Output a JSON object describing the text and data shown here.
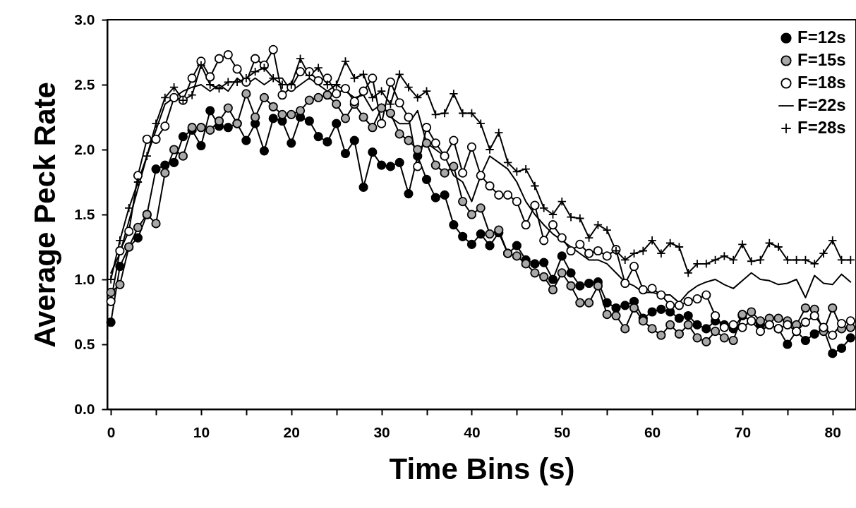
{
  "chart_data": {
    "type": "line",
    "xlabel": "Time Bins (s)",
    "ylabel": "Average Peck Rate",
    "x": [
      0,
      1,
      2,
      3,
      4,
      5,
      6,
      7,
      8,
      9,
      10,
      11,
      12,
      13,
      14,
      15,
      16,
      17,
      18,
      19,
      20,
      21,
      22,
      23,
      24,
      25,
      26,
      27,
      28,
      29,
      30,
      31,
      32,
      33,
      34,
      35,
      36,
      37,
      38,
      39,
      40,
      41,
      42,
      43,
      44,
      45,
      46,
      47,
      48,
      49,
      50,
      51,
      52,
      53,
      54,
      55,
      56,
      57,
      58,
      59,
      60,
      61,
      62,
      63,
      64,
      65,
      66,
      67,
      68,
      69,
      70,
      71,
      72,
      73,
      74,
      75,
      76,
      77,
      78,
      79,
      80,
      81,
      82
    ],
    "series": [
      {
        "name": "F=12s",
        "color": "#000000",
        "marker": "circle",
        "values": [
          0.67,
          1.1,
          1.25,
          1.32,
          1.5,
          1.85,
          1.88,
          1.9,
          2.1,
          2.15,
          2.03,
          2.3,
          2.18,
          2.17,
          2.2,
          2.07,
          2.2,
          1.99,
          2.24,
          2.22,
          2.05,
          2.25,
          2.22,
          2.1,
          2.06,
          2.2,
          1.97,
          2.07,
          1.71,
          1.98,
          1.88,
          1.87,
          1.9,
          1.66,
          1.95,
          1.77,
          1.63,
          1.65,
          1.42,
          1.33,
          1.27,
          1.35,
          1.26,
          1.36,
          1.2,
          1.26,
          1.15,
          1.12,
          1.13,
          1.0,
          1.18,
          1.05,
          0.95,
          0.97,
          0.98,
          0.82,
          0.78,
          0.8,
          0.83,
          0.7,
          0.75,
          0.77,
          0.75,
          0.7,
          0.72,
          0.65,
          0.62,
          0.68,
          0.65,
          0.62,
          0.72,
          0.68,
          0.65,
          0.65,
          0.62,
          0.5,
          0.6,
          0.53,
          0.58,
          0.62,
          0.43,
          0.47,
          0.55
        ]
      },
      {
        "name": "F=15s",
        "color": "#a8a8a8",
        "marker": "circle",
        "values": [
          0.9,
          0.96,
          1.25,
          1.4,
          1.5,
          1.43,
          1.82,
          2.0,
          1.95,
          2.17,
          2.17,
          2.15,
          2.22,
          2.32,
          2.2,
          2.43,
          2.25,
          2.4,
          2.33,
          2.27,
          2.27,
          2.3,
          2.38,
          2.4,
          2.42,
          2.35,
          2.24,
          2.35,
          2.25,
          2.17,
          2.32,
          2.28,
          2.12,
          2.07,
          2.0,
          2.05,
          1.88,
          1.82,
          1.87,
          1.6,
          1.5,
          1.55,
          1.35,
          1.38,
          1.2,
          1.18,
          1.12,
          1.05,
          1.02,
          0.92,
          1.05,
          0.95,
          0.82,
          0.82,
          0.95,
          0.73,
          0.72,
          0.62,
          0.78,
          0.68,
          0.62,
          0.57,
          0.65,
          0.58,
          0.65,
          0.55,
          0.52,
          0.6,
          0.55,
          0.53,
          0.73,
          0.75,
          0.68,
          0.7,
          0.7,
          0.68,
          0.65,
          0.78,
          0.77,
          0.6,
          0.78,
          0.62,
          0.63
        ]
      },
      {
        "name": "F=18s",
        "color": "#ffffff",
        "marker": "circle",
        "values": [
          0.83,
          1.22,
          1.37,
          1.8,
          2.08,
          2.08,
          2.18,
          2.4,
          2.38,
          2.55,
          2.68,
          2.56,
          2.7,
          2.73,
          2.62,
          2.52,
          2.7,
          2.65,
          2.77,
          2.42,
          2.48,
          2.6,
          2.6,
          2.53,
          2.55,
          2.43,
          2.47,
          2.37,
          2.45,
          2.55,
          2.2,
          2.52,
          2.36,
          2.25,
          1.87,
          2.17,
          2.05,
          1.95,
          2.07,
          1.82,
          2.02,
          1.8,
          1.72,
          1.65,
          1.65,
          1.6,
          1.42,
          1.57,
          1.3,
          1.42,
          1.32,
          1.22,
          1.27,
          1.2,
          1.22,
          1.18,
          1.23,
          0.97,
          1.1,
          0.92,
          0.93,
          0.88,
          0.8,
          0.8,
          0.83,
          0.85,
          0.88,
          0.72,
          0.63,
          0.65,
          0.63,
          0.68,
          0.6,
          0.65,
          0.62,
          0.65,
          0.6,
          0.67,
          0.72,
          0.63,
          0.57,
          0.66,
          0.68
        ]
      },
      {
        "name": "F=22s",
        "color": "#000000",
        "marker": "none",
        "values": [
          1.05,
          1.2,
          1.45,
          1.7,
          1.95,
          2.15,
          2.35,
          2.4,
          2.45,
          2.48,
          2.5,
          2.45,
          2.5,
          2.45,
          2.55,
          2.5,
          2.55,
          2.5,
          2.55,
          2.55,
          2.45,
          2.5,
          2.55,
          2.5,
          2.45,
          2.5,
          2.45,
          2.4,
          2.42,
          2.3,
          2.35,
          2.25,
          2.2,
          2.2,
          2.3,
          2.05,
          2.0,
          1.95,
          1.8,
          1.75,
          1.6,
          1.8,
          1.95,
          1.9,
          1.85,
          1.75,
          1.6,
          1.5,
          1.42,
          1.35,
          1.3,
          1.25,
          1.2,
          1.15,
          1.15,
          1.12,
          1.05,
          0.98,
          0.95,
          0.9,
          0.9,
          0.88,
          0.88,
          0.82,
          0.9,
          0.95,
          0.98,
          1.0,
          0.96,
          0.93,
          0.99,
          1.05,
          1.0,
          0.99,
          0.96,
          0.97,
          1.0,
          0.86,
          1.03,
          0.97,
          0.96,
          1.04,
          0.98
        ]
      },
      {
        "name": "F=28s",
        "color": "#000000",
        "marker": "cross",
        "values": [
          1.0,
          1.3,
          1.55,
          1.75,
          1.95,
          2.2,
          2.4,
          2.48,
          2.38,
          2.42,
          2.65,
          2.5,
          2.47,
          2.52,
          2.52,
          2.55,
          2.6,
          2.63,
          2.55,
          2.5,
          2.5,
          2.7,
          2.57,
          2.63,
          2.5,
          2.5,
          2.68,
          2.55,
          2.58,
          2.4,
          2.45,
          2.35,
          2.58,
          2.48,
          2.4,
          2.45,
          2.27,
          2.28,
          2.43,
          2.28,
          2.28,
          2.2,
          2.0,
          2.13,
          1.9,
          1.83,
          1.85,
          1.72,
          1.55,
          1.5,
          1.6,
          1.48,
          1.47,
          1.32,
          1.42,
          1.38,
          1.22,
          1.15,
          1.2,
          1.22,
          1.3,
          1.2,
          1.28,
          1.25,
          1.05,
          1.12,
          1.12,
          1.15,
          1.18,
          1.15,
          1.27,
          1.14,
          1.15,
          1.28,
          1.25,
          1.15,
          1.15,
          1.15,
          1.12,
          1.2,
          1.3,
          1.15,
          1.15
        ]
      }
    ],
    "xlim": [
      -0.4,
      82.6
    ],
    "xticks": [
      0,
      {
        "value": 5,
        "label": null
      },
      10,
      {
        "value": 15,
        "label": null
      },
      20,
      {
        "value": 25,
        "label": null
      },
      30,
      {
        "value": 35,
        "label": null
      },
      40,
      {
        "value": 45,
        "label": null
      },
      50,
      {
        "value": 55,
        "label": null
      },
      60,
      {
        "value": 65,
        "label": null
      },
      70,
      {
        "value": 75,
        "label": null
      },
      80
    ],
    "ylim": [
      0,
      3
    ],
    "yticks": [
      {
        "value": 0,
        "label": "0.0"
      },
      {
        "value": 0.5,
        "label": "0.5"
      },
      {
        "value": 1,
        "label": "1.0"
      },
      {
        "value": 1.5,
        "label": "1.5"
      },
      {
        "value": 2,
        "label": "2.0"
      },
      {
        "value": 2.5,
        "label": "2.5"
      },
      {
        "value": 3,
        "label": "3.0"
      }
    ],
    "legend": "top right",
    "grid": false
  }
}
